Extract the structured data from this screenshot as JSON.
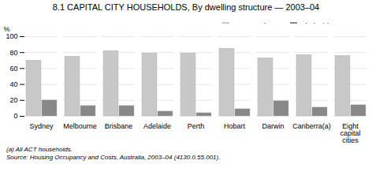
{
  "chart_data": {
    "type": "bar",
    "title": "8.1  CAPITAL CITY HOUSEHOLDS, By dwelling structure — 2003–04",
    "categories": [
      "Sydney",
      "Melbourne",
      "Brisbane",
      "Adelaide",
      "Perth",
      "Hobart",
      "Darwin",
      "Canberra(a)",
      "Eight\ncapital\ncities"
    ],
    "series": [
      {
        "name": "Separate house",
        "color": "#c8c8c8",
        "values": [
          70,
          75,
          82,
          79,
          79,
          85,
          73,
          77,
          76
        ]
      },
      {
        "name": "Flat/unit/apartment",
        "color": "#888888",
        "values": [
          20,
          13,
          13,
          6,
          4,
          9,
          19,
          11,
          14
        ]
      }
    ],
    "ylabel": "%",
    "ylim": [
      0,
      100
    ],
    "yticks": [
      0,
      20,
      40,
      60,
      80,
      100
    ],
    "grid": true,
    "legend": "upper right",
    "annotations": [
      "(a) All ACT households.",
      "Source: Housing Occupancy and Costs, Australia, 2003–04 (4130.0.55.001)."
    ]
  }
}
